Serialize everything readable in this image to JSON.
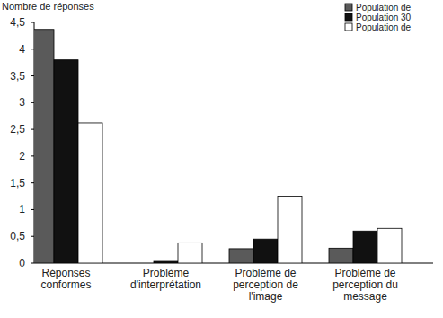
{
  "chart_data": {
    "type": "bar",
    "y_label": "Nombre de réponses",
    "categories": [
      "Réponses conformes",
      "Problème d'interprétation",
      "Problème de perception de l'image",
      "Problème de perception du message"
    ],
    "series": [
      {
        "name": "Population de",
        "color": "#5a5a5a",
        "values": [
          4.37,
          0,
          0.27,
          0.28
        ]
      },
      {
        "name": "Population 30",
        "color": "#111111",
        "values": [
          3.8,
          0.05,
          0.45,
          0.6
        ]
      },
      {
        "name": "Population de",
        "color": "#ffffff",
        "values": [
          2.62,
          0.38,
          1.25,
          0.65
        ]
      }
    ],
    "ylim": [
      0,
      4.5
    ],
    "yticks": [
      0,
      {
        "value": 0.5,
        "label": "0,5"
      },
      1,
      {
        "value": 1.5,
        "label": "1,5"
      },
      2,
      {
        "value": 2.5,
        "label": "2,5"
      },
      3,
      {
        "value": 3.5,
        "label": "3,5"
      },
      4,
      {
        "value": 4.5,
        "label": "4,5"
      }
    ],
    "grid": false,
    "legend": "upper right"
  }
}
